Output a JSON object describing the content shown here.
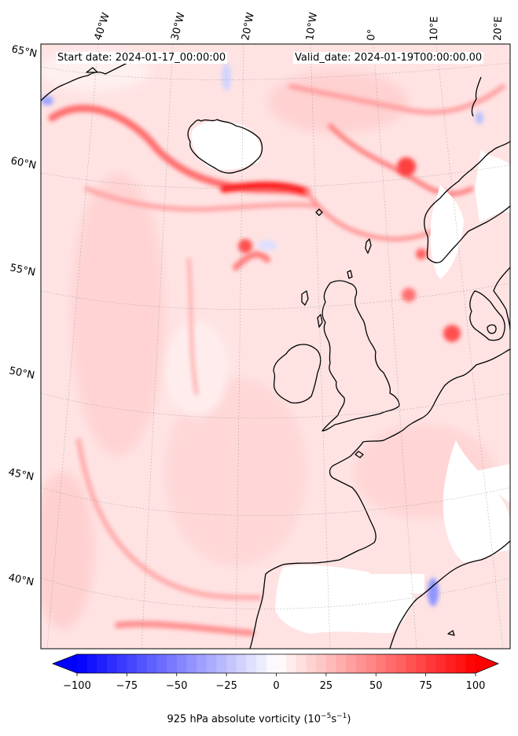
{
  "map": {
    "start_date": "Start date: 2024-01-17_00:00:00",
    "valid_date": "Valid_date: 2024-01-19T00:00:00.00",
    "lon_labels": [
      "40°W",
      "30°W",
      "20°W",
      "10°W",
      "0°",
      "10°E",
      "20°E"
    ],
    "lat_labels": [
      "65°N",
      "60°N",
      "55°N",
      "50°N",
      "45°N",
      "40°N"
    ],
    "field": "925 hPa absolute vorticity",
    "colors": {
      "negative": "#0000ff",
      "zero": "#ffffff",
      "positive": "#ff0000",
      "coast": "#000000",
      "land_low": "#ffffff"
    }
  },
  "colorbar": {
    "ticks": [
      "−100",
      "−75",
      "−50",
      "−25",
      "0",
      "25",
      "50",
      "75",
      "100"
    ],
    "min": -100,
    "max": 100,
    "label_main": "925 hPa absolute vorticity (10",
    "label_exp1": "−5",
    "label_mid": "s",
    "label_exp2": "−1",
    "label_end": ")"
  }
}
